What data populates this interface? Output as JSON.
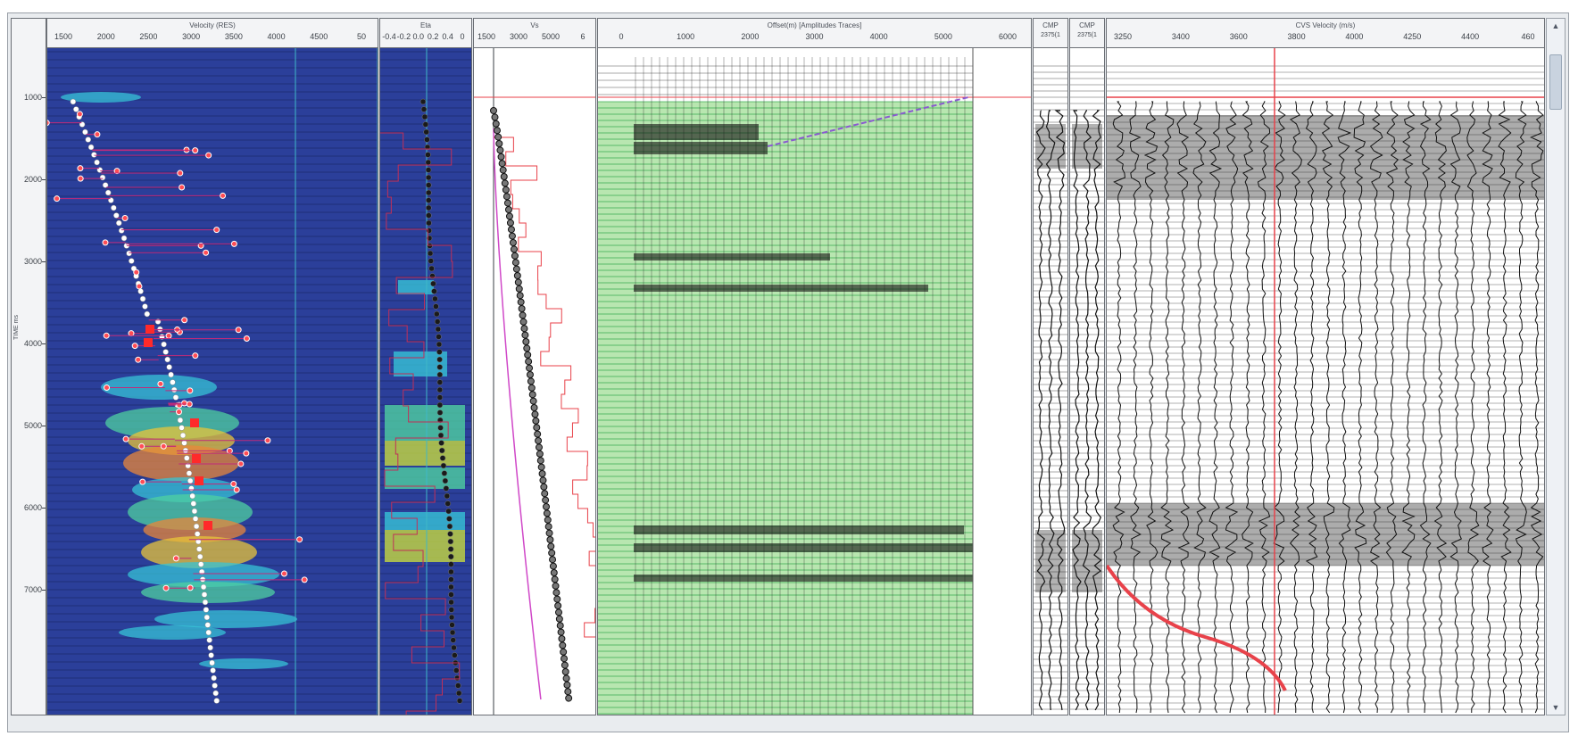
{
  "time_axis": {
    "label": "TIME ms",
    "ticks": [
      "1000",
      "2000",
      "3000",
      "4000",
      "5000",
      "6000",
      "7000"
    ]
  },
  "panels": {
    "velocity": {
      "title": "Velocity (RES)",
      "ticks": [
        "1500",
        "2000",
        "2500",
        "3000",
        "3500",
        "4000",
        "4500",
        "50"
      ]
    },
    "eta": {
      "title": "Eta",
      "ticks": [
        "-0.4",
        "-0.2",
        "0.0",
        "0.2",
        "0.4",
        "0"
      ]
    },
    "vs": {
      "title": "Vs",
      "ticks": [
        "1500",
        "3000",
        "5000",
        "6"
      ]
    },
    "offset": {
      "title": "Offset(m) [Amplitudes Traces]",
      "ticks": [
        "0",
        "1000",
        "2000",
        "3000",
        "4000",
        "5000",
        "6000"
      ]
    },
    "cmp1": {
      "title": "CMP",
      "subtitle": "2375(1"
    },
    "cmp2": {
      "title": "CMP",
      "subtitle": "2375(1"
    },
    "cvs": {
      "title": "CVS Velocity (m/s)",
      "ticks": [
        "3250",
        "3400",
        "3600",
        "3800",
        "4000",
        "4250",
        "4400",
        "460"
      ]
    }
  },
  "scrollbar": {
    "up_icon": "up-arrow-icon",
    "down_icon": "down-arrow-icon"
  },
  "colors": {
    "semblance_background": "#2b3f9a",
    "pick_line": "#e8424a",
    "trace_fill": "#8fd68a",
    "green_line": "#2fa84a",
    "picks": "#ffffff"
  }
}
